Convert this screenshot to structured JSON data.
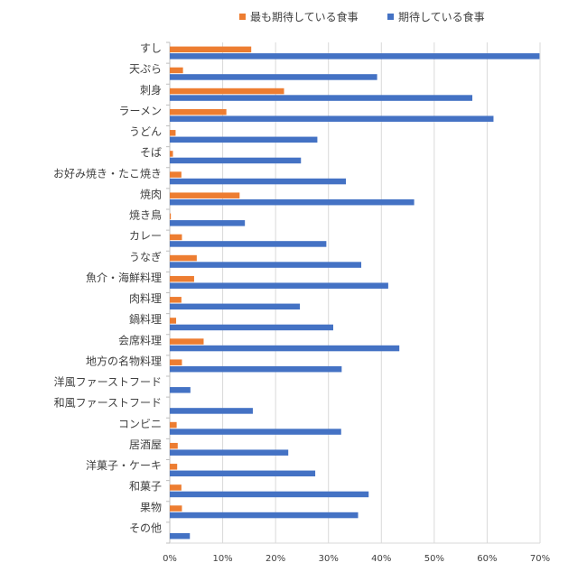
{
  "chart_data": {
    "type": "bar",
    "orientation": "horizontal",
    "title": "",
    "xlabel": "",
    "ylabel": "",
    "xlim": [
      0,
      0.7
    ],
    "x_ticks": [
      "0%",
      "10%",
      "20%",
      "30%",
      "40%",
      "50%",
      "60%",
      "70%"
    ],
    "grid": true,
    "legend_position": "top",
    "categories": [
      "すし",
      "天ぷら",
      "刺身",
      "ラーメン",
      "うどん",
      "そば",
      "お好み焼き・たこ焼き",
      "焼肉",
      "焼き鳥",
      "カレー",
      "うなぎ",
      "魚介・海鮮料理",
      "肉料理",
      "鍋料理",
      "会席料理",
      "地方の名物料理",
      "洋風ファーストフード",
      "和風ファーストフード",
      "コンビニ",
      "居酒屋",
      "洋菓子・ケーキ",
      "和菓子",
      "果物",
      "その他"
    ],
    "series": [
      {
        "name": "最も期待している食事",
        "color": "#ED7D31",
        "values": [
          0.154,
          0.025,
          0.216,
          0.107,
          0.011,
          0.006,
          0.022,
          0.132,
          0.002,
          0.023,
          0.051,
          0.046,
          0.022,
          0.012,
          0.064,
          0.023,
          0.0,
          0.0,
          0.013,
          0.015,
          0.014,
          0.022,
          0.023,
          0.0
        ]
      },
      {
        "name": "期待している食事",
        "color": "#4472C4",
        "values": [
          0.699,
          0.392,
          0.572,
          0.612,
          0.279,
          0.248,
          0.333,
          0.462,
          0.142,
          0.296,
          0.362,
          0.413,
          0.246,
          0.309,
          0.434,
          0.325,
          0.039,
          0.157,
          0.324,
          0.224,
          0.275,
          0.376,
          0.356,
          0.038
        ]
      }
    ]
  }
}
